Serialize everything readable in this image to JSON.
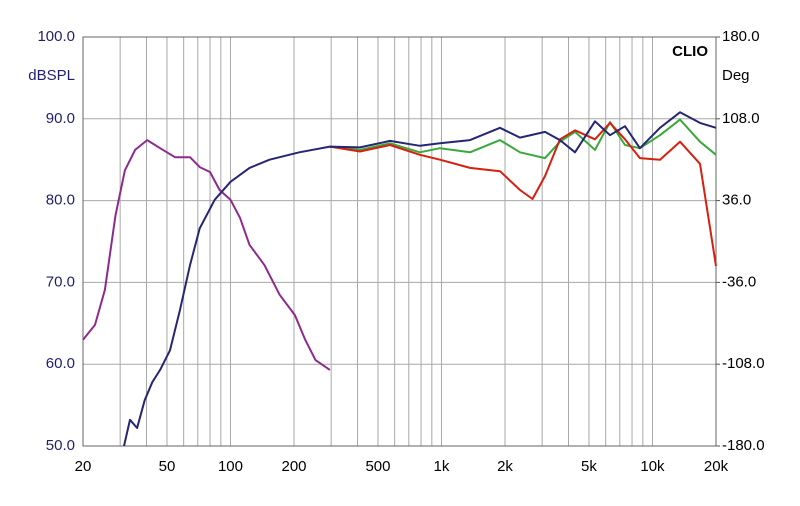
{
  "chart_data": {
    "type": "line",
    "annotation": "CLIO",
    "ylabel": "dBSPL",
    "y2label": "Deg",
    "xscale": "log",
    "grid": true,
    "xlim": [
      20,
      20000
    ],
    "xticks": [
      20,
      50,
      100,
      200,
      500,
      {
        "value": 1000,
        "label": "1k"
      },
      {
        "value": 2000,
        "label": "2k"
      },
      {
        "value": 5000,
        "label": "5k"
      },
      {
        "value": 10000,
        "label": "10k"
      },
      {
        "value": 20000,
        "label": "20k"
      }
    ],
    "xminorticks": [
      30,
      40,
      60,
      70,
      80,
      90,
      300,
      400,
      600,
      700,
      800,
      900,
      3000,
      4000,
      6000,
      7000,
      8000,
      9000
    ],
    "ylim": [
      50,
      100
    ],
    "yticks": [
      {
        "value": 50,
        "label": "50.0"
      },
      {
        "value": 60,
        "label": "60.0"
      },
      {
        "value": 70,
        "label": "70.0"
      },
      {
        "value": 80,
        "label": "80.0"
      },
      {
        "value": 90,
        "label": "90.0"
      },
      {
        "value": 100,
        "label": "100.0"
      }
    ],
    "y2lim": [
      -180,
      180
    ],
    "y2ticks": [
      {
        "value": -180,
        "label": "-180.0"
      },
      {
        "value": -108,
        "label": "-108.0"
      },
      {
        "value": -36,
        "label": "-36.0"
      },
      {
        "value": 36,
        "label": "36.0"
      },
      {
        "value": 108,
        "label": "108.0"
      },
      {
        "value": 180,
        "label": "180.0"
      }
    ],
    "series": [
      {
        "color": "#8e2a8e",
        "x": [
          20,
          22.8,
          25.4,
          28.5,
          31.6,
          35.3,
          40.3,
          46.4,
          54.6,
          64.3,
          71.5,
          80,
          88.8,
          100,
          111,
          123,
          145,
          171,
          202,
          226,
          253,
          296
        ],
        "values": [
          63.0,
          64.8,
          69.1,
          78.2,
          83.7,
          86.2,
          87.4,
          86.4,
          85.3,
          85.3,
          84.1,
          83.5,
          81.3,
          80.1,
          77.9,
          74.6,
          72.1,
          68.5,
          66.0,
          63.0,
          60.5,
          59.3
        ]
      },
      {
        "color": "#3aa83a",
        "x": [
          296,
          411,
          570,
          790,
          984,
          1365,
          1894,
          2356,
          3094,
          3646,
          4294,
          5340,
          6290,
          7410,
          8720,
          10860,
          13500,
          16800,
          20000
        ],
        "values": [
          86.6,
          86.2,
          87.0,
          85.9,
          86.4,
          85.9,
          87.4,
          85.9,
          85.2,
          87.2,
          88.4,
          86.2,
          89.6,
          86.8,
          86.4,
          88.0,
          89.9,
          87.2,
          85.6
        ]
      },
      {
        "color": "#d42010",
        "x": [
          296,
          411,
          570,
          790,
          984,
          1365,
          1894,
          2356,
          2700,
          3094,
          3646,
          4294,
          5340,
          6290,
          7410,
          8720,
          10860,
          13500,
          16800,
          20000
        ],
        "values": [
          86.6,
          86.0,
          86.8,
          85.6,
          85.0,
          84.0,
          83.6,
          81.3,
          80.2,
          83.0,
          87.5,
          88.6,
          87.5,
          89.5,
          87.5,
          85.2,
          85.0,
          87.2,
          84.5,
          72.0
        ]
      },
      {
        "color": "#262673",
        "x": [
          31.3,
          33.4,
          36.1,
          39.2,
          42.6,
          46.4,
          51.7,
          57.6,
          64.3,
          71.5,
          84.2,
          100,
          123,
          153,
          212,
          296,
          411,
          570,
          790,
          984,
          1365,
          1894,
          2356,
          3094,
          3646,
          4294,
          5340,
          6290,
          7410,
          8720,
          10860,
          13500,
          16800,
          20000
        ],
        "values": [
          50.0,
          53.2,
          52.2,
          55.6,
          57.8,
          59.3,
          61.7,
          66.6,
          72.1,
          76.6,
          80.1,
          82.3,
          84.0,
          85.0,
          85.9,
          86.6,
          86.5,
          87.3,
          86.7,
          87.0,
          87.4,
          88.9,
          87.7,
          88.4,
          87.4,
          85.9,
          89.7,
          88.0,
          89.1,
          86.4,
          88.9,
          90.8,
          89.5,
          88.9
        ]
      }
    ]
  }
}
